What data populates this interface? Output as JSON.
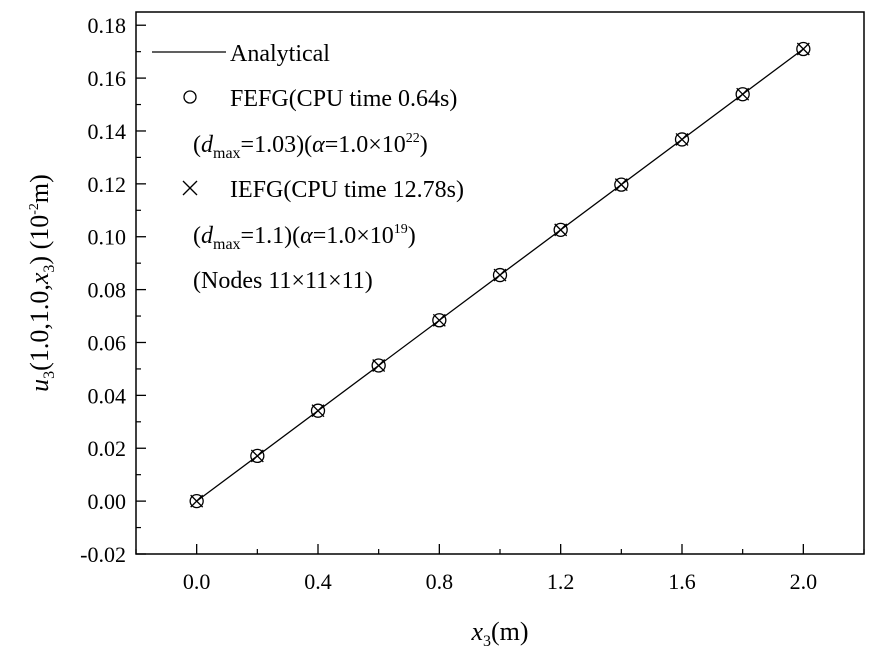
{
  "chart_data": {
    "type": "line",
    "title": "",
    "xlabel": {
      "var": "x",
      "sub": "3",
      "unit": "(m)"
    },
    "ylabel": {
      "var": "u",
      "sub": "3",
      "args": "(1.0,1.0,",
      "argvar": "x",
      "argsub": "3",
      "close": ")",
      "unit_pre": " (10",
      "unit_exp": "-2",
      "unit_post": "m)"
    },
    "xlim": [
      -0.2,
      2.2
    ],
    "ylim": [
      -0.02,
      0.185
    ],
    "xticks": [
      0.0,
      0.4,
      0.8,
      1.2,
      1.6,
      2.0
    ],
    "xtick_labels": [
      "0.0",
      "0.4",
      "0.8",
      "1.2",
      "1.6",
      "2.0"
    ],
    "yticks": [
      -0.02,
      0.0,
      0.02,
      0.04,
      0.06,
      0.08,
      0.1,
      0.12,
      0.14,
      0.16,
      0.18
    ],
    "ytick_labels": [
      "-0.02",
      "0.00",
      "0.02",
      "0.04",
      "0.06",
      "0.08",
      "0.10",
      "0.12",
      "0.14",
      "0.16",
      "0.18"
    ],
    "grid": false,
    "legend_position": "top-left",
    "series": [
      {
        "name": "Analytical",
        "style": "line",
        "x": [
          0.0,
          2.0
        ],
        "y": [
          0.0,
          0.171
        ]
      },
      {
        "name": "FEFG(CPU time 0.64s)",
        "style": "circle",
        "x": [
          0.0,
          0.2,
          0.4,
          0.6,
          0.8,
          1.0,
          1.2,
          1.4,
          1.6,
          1.8,
          2.0
        ],
        "y": [
          0.0,
          0.0171,
          0.0342,
          0.0513,
          0.0684,
          0.0855,
          0.1026,
          0.1197,
          0.1368,
          0.1539,
          0.171
        ]
      },
      {
        "name": "IEFG(CPU time 12.78s)",
        "style": "cross",
        "x": [
          0.0,
          0.2,
          0.4,
          0.6,
          0.8,
          1.0,
          1.2,
          1.4,
          1.6,
          1.8,
          2.0
        ],
        "y": [
          0.0,
          0.0171,
          0.0342,
          0.0513,
          0.0684,
          0.0855,
          0.1026,
          0.1197,
          0.1368,
          0.1539,
          0.171
        ]
      }
    ],
    "legend": {
      "analytical_label": "Analytical",
      "fefg_label": "FEFG(CPU time 0.64s)",
      "fefg_param": {
        "p1": "(",
        "d": "d",
        "dsub": "max",
        "p2": "=1.03)(",
        "alpha": "α",
        "p3": "=1.0×10",
        "exp": "22",
        "p4": ")"
      },
      "iefg_label": "IEFG(CPU time 12.78s)",
      "iefg_param": {
        "p1": "(",
        "d": "d",
        "dsub": "max",
        "p2": "=1.1)(",
        "alpha": "α",
        "p3": "=1.0×10",
        "exp": "19",
        "p4": ")"
      },
      "nodes_label": "(Nodes 11×11×11)"
    }
  }
}
